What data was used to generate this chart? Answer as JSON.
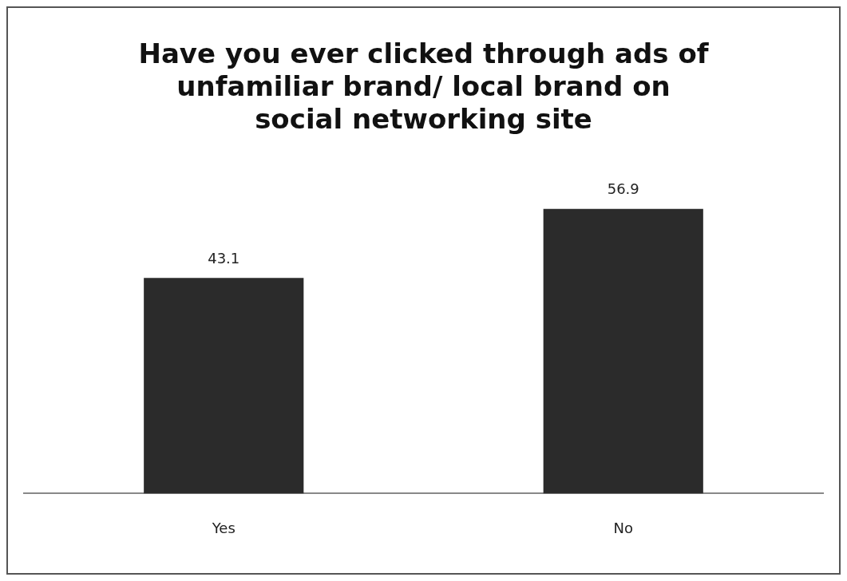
{
  "chart_data": {
    "type": "bar",
    "title": "Have you ever clicked through ads of unfamiliar brand/ local brand on social networking site",
    "categories": [
      "Yes",
      "No"
    ],
    "values": [
      43.1,
      56.9
    ],
    "color": "#2b2b2b",
    "tick_labels": "x",
    "grid": false,
    "data_labels": true,
    "legend": false
  }
}
